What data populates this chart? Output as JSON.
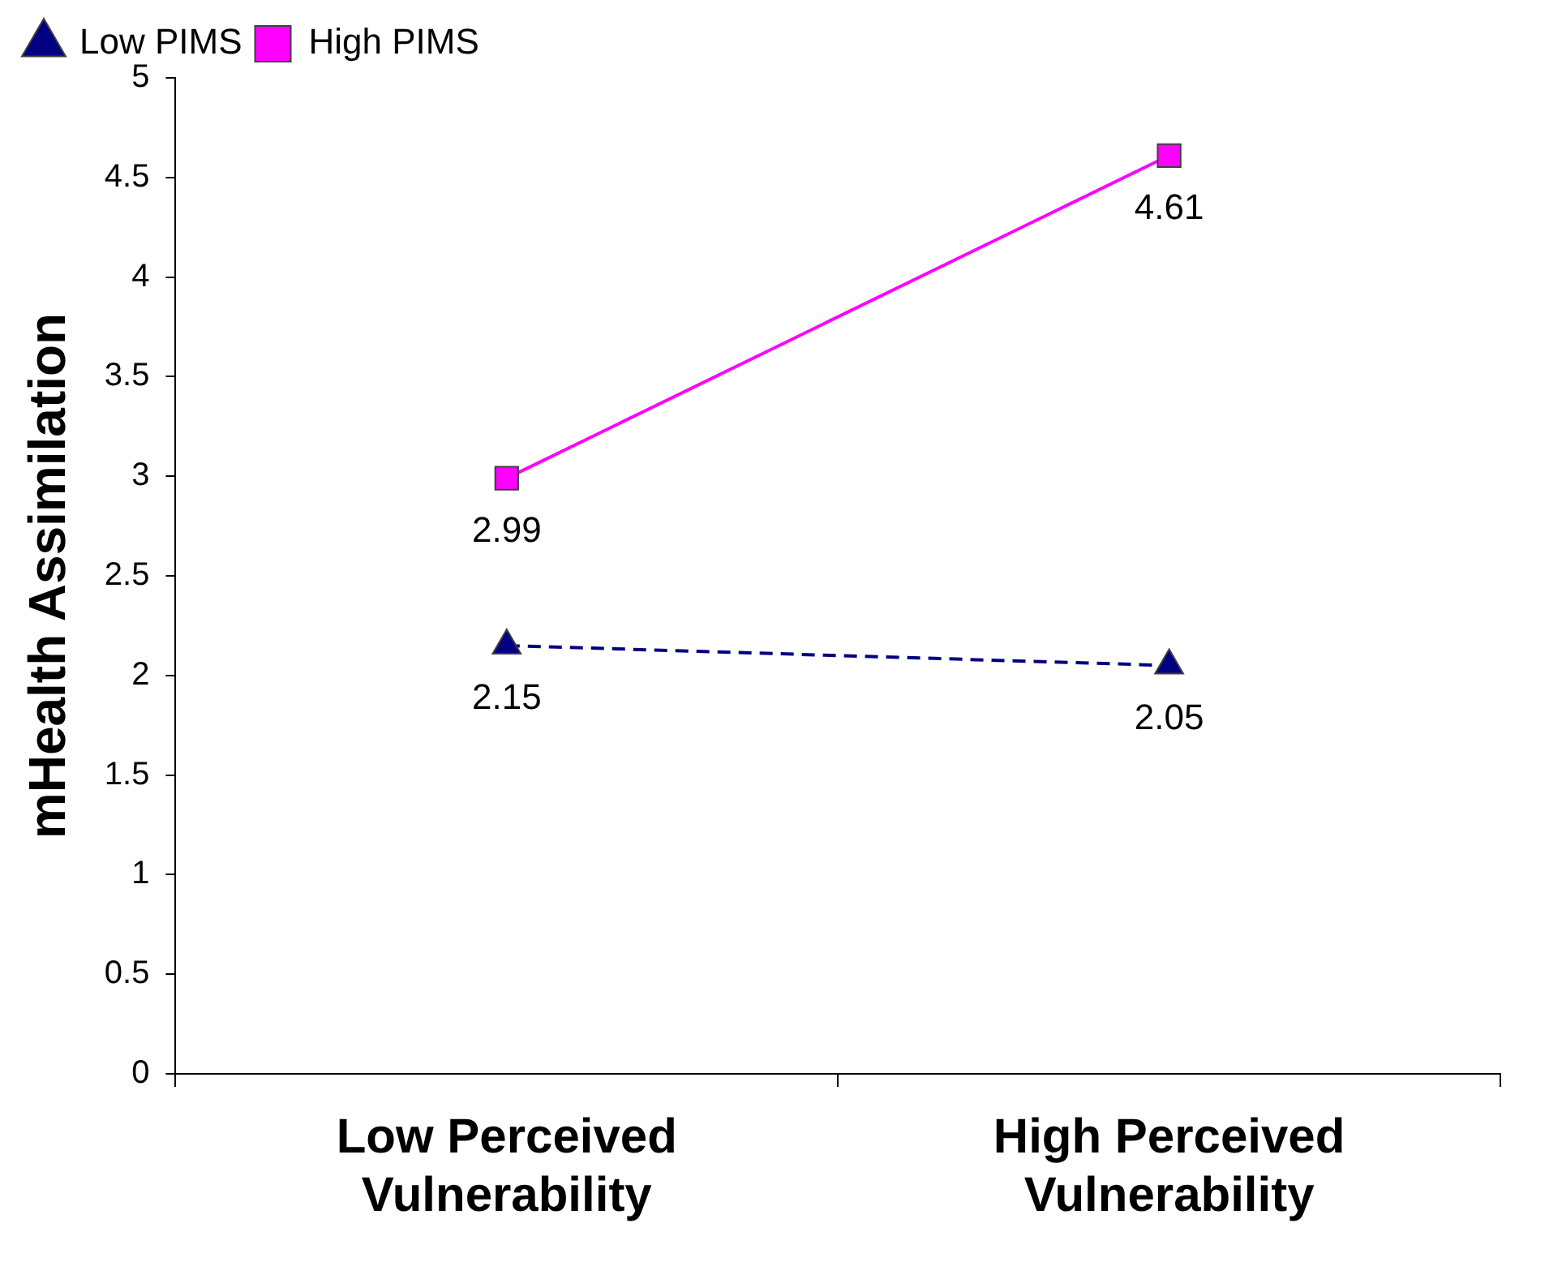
{
  "chart_data": {
    "type": "line",
    "ylabel": "mHealth Assimilation",
    "categories": [
      "Low Perceived Vulnerability",
      "High Perceived Vulnerability"
    ],
    "series": [
      {
        "name": "Low PIMS",
        "color": "#000080",
        "values": [
          2.15,
          2.05
        ],
        "marker": "triangle",
        "line_style": "dashed"
      },
      {
        "name": "High PIMS",
        "color": "#ff00ff",
        "values": [
          2.99,
          4.61
        ],
        "marker": "square",
        "line_style": "solid"
      }
    ],
    "ylim": [
      0,
      5
    ],
    "yticks": [
      0,
      0.5,
      1,
      1.5,
      2,
      2.5,
      3,
      3.5,
      4,
      4.5,
      5
    ],
    "grid": false,
    "legend": "top left",
    "data_labels": true
  }
}
